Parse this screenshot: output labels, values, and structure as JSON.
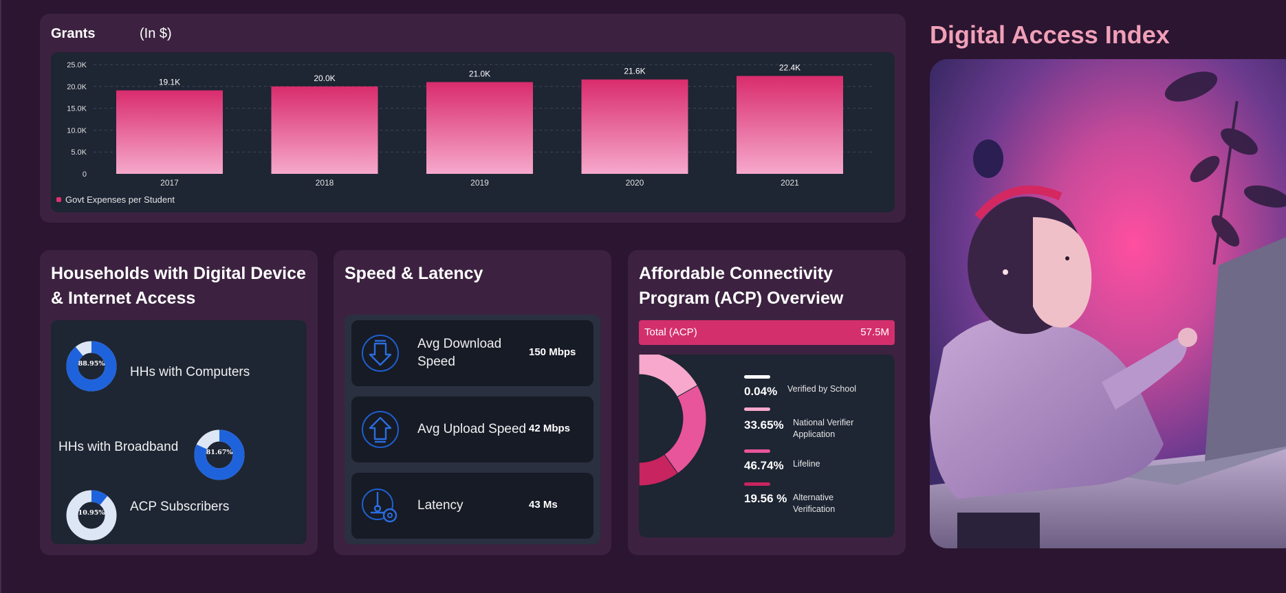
{
  "grants": {
    "title": "Grants",
    "unit": "(In $)",
    "legend": "Govt Expenses per Student"
  },
  "chart_data": {
    "type": "bar",
    "categories": [
      "2017",
      "2018",
      "2019",
      "2020",
      "2021"
    ],
    "series": [
      {
        "name": "Govt Expenses per Student",
        "values": [
          19.1,
          20.0,
          21.0,
          21.6,
          22.4
        ]
      }
    ],
    "value_labels": [
      "19.1K",
      "20.0K",
      "21.0K",
      "21.6K",
      "22.4K"
    ],
    "yticks": [
      "0",
      "5.0K",
      "10.0K",
      "15.0K",
      "20.0K",
      "25.0K"
    ],
    "ylim": [
      0,
      25
    ],
    "grid": true,
    "legend_position": "bottom-left",
    "bar_color": "#e0306f"
  },
  "households": {
    "title": "Households with Digital Device & Internet Access",
    "items": [
      {
        "label": "HHs with Computers",
        "pct_label": "88.95%",
        "value": 88.95
      },
      {
        "label": "HHs with Broadband",
        "pct_label": "81.67%",
        "value": 81.67
      },
      {
        "label": "ACP Subscribers",
        "pct_label": "10.95%",
        "value": 10.95
      }
    ],
    "colors": {
      "filled": "#1f63dc",
      "remaining": "#dde6f5"
    }
  },
  "speed": {
    "title": "Speed & Latency",
    "items": [
      {
        "label": "Avg Download Speed",
        "value": "150 Mbps",
        "icon": "download-arrow-icon"
      },
      {
        "label": "Avg Upload Speed",
        "value": "42 Mbps",
        "icon": "upload-arrow-icon"
      },
      {
        "label": "Latency",
        "value": "43 Ms",
        "icon": "latency-gauge-icon"
      }
    ]
  },
  "acp": {
    "title": "Affordable Connectivity Program (ACP) Overview",
    "total_label": "Total (ACP)",
    "total_value": "57.5M",
    "items": [
      {
        "pct": "0.04%",
        "label": "Verified by School",
        "value": 0.04,
        "color": "#ffffff"
      },
      {
        "pct": "33.65%",
        "label": "National Verifier Application",
        "value": 33.65,
        "color": "#f7a8cc"
      },
      {
        "pct": "46.74%",
        "label": "Lifeline",
        "value": 46.74,
        "color": "#e8559a"
      },
      {
        "pct": "19.56 %",
        "label": "Alternative Verification",
        "value": 19.56,
        "color": "#c8245f"
      }
    ]
  },
  "right": {
    "title": "Digital Access Index"
  }
}
